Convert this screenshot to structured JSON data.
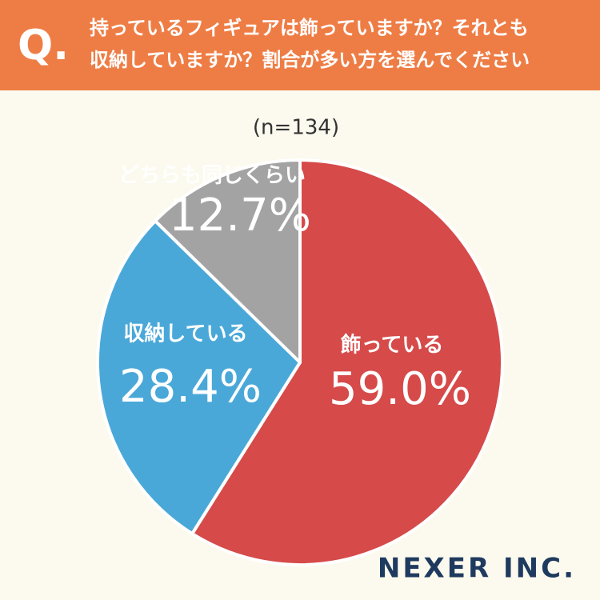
{
  "chart_data": {
    "type": "pie",
    "title_marker": "Q.",
    "title": [
      "持っているフィギュアは飾っていますか？それとも",
      "収納していますか？割合が多い方を選んでください"
    ],
    "subtitle": "(n=134)",
    "categories": [
      "飾っている",
      "収納している",
      "どちらも同じくらい"
    ],
    "values": [
      59.0,
      28.4,
      12.7
    ],
    "value_labels": [
      "59.0%",
      "28.4%",
      "12.7%"
    ],
    "colors": [
      "#d64a4a",
      "#4aa8d8",
      "#a3a3a3"
    ],
    "source": "NEXER INC."
  }
}
